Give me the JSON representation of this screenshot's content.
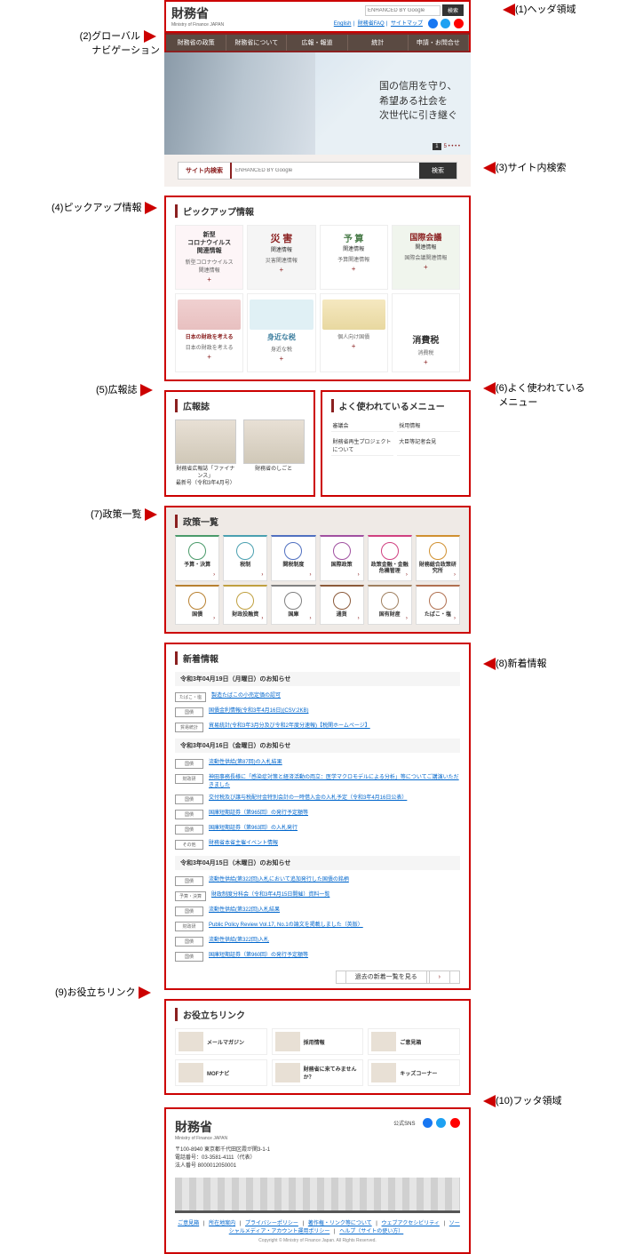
{
  "callouts": {
    "c1": "(1)ヘッダ領域",
    "c2a": "(2)グローバル",
    "c2b": "ナビゲーション",
    "c3": "(3)サイト内検索",
    "c4": "(4)ピックアップ情報",
    "c5": "(5)広報誌",
    "c6a": "(6)よく使われている",
    "c6b": "メニュー",
    "c7": "(7)政策一覧",
    "c8": "(8)新着情報",
    "c9": "(9)お役立ちリンク",
    "c10": "(10)フッタ領域"
  },
  "header": {
    "logo": "財務省",
    "logo_sub": "Ministry of Finance JAPAN",
    "search_placeholder": "ENHANCED BY Google",
    "search_btn": "検索",
    "links": {
      "en": "English",
      "faq": "財務省FAQ",
      "sitemap": "サイトマップ"
    }
  },
  "gnav": [
    "財務省の政策",
    "財務省について",
    "広報・報道",
    "統計",
    "申請・お問合せ"
  ],
  "hero": {
    "line1": "国の信用を守り、",
    "line2": "希望ある社会を",
    "line3": "次世代に引き継ぐ",
    "page": "1 / 5"
  },
  "search": {
    "label": "サイト内検索",
    "placeholder": "ENHANCED BY Google",
    "btn": "検索"
  },
  "pickup": {
    "title": "ピックアップ情報",
    "row1": [
      {
        "title": "新型\nコロナウイルス\n関連情報",
        "sub": "新型コロナウイルス\n関連情報"
      },
      {
        "title": "災 害",
        "sub2": "関連情報",
        "sub": "災害関連情報"
      },
      {
        "title": "予 算",
        "sub2": "関連情報",
        "sub": "予算関連情報"
      },
      {
        "title": "国際会議",
        "sub2": "関連情報",
        "sub": "国際会議関連情報"
      }
    ],
    "row2": [
      {
        "sub": "日本の財政を考える"
      },
      {
        "sub": "身近な税"
      },
      {
        "sub": "個人向け国債"
      },
      {
        "sub": "消費税"
      }
    ],
    "row2_titles": {
      "zaisei": "日本の財政を考える",
      "zei": "身近な税",
      "kokusai": "個人向け国債",
      "shohi": "消費税"
    }
  },
  "koho": {
    "title": "広報誌",
    "items": [
      {
        "cap": "財務省広報誌「ファイナンス」\n最新号（令和3年4月号）"
      },
      {
        "cap": "財務省のしごと"
      }
    ]
  },
  "freq": {
    "title": "よく使われているメニュー",
    "items": [
      "審議会",
      "採用情報",
      "財務省再生プロジェクトについて",
      "大臣等記者会見"
    ]
  },
  "policy": {
    "title": "政策一覧",
    "row1": [
      {
        "lbl": "予算・決算",
        "c": "#4a9a6a"
      },
      {
        "lbl": "税制",
        "c": "#4aa0b0"
      },
      {
        "lbl": "関税制度",
        "c": "#5070c0"
      },
      {
        "lbl": "国際政策",
        "c": "#a050a0"
      },
      {
        "lbl": "政策金融・金融危機管理",
        "c": "#d04080"
      },
      {
        "lbl": "財務総合政策研究所",
        "c": "#d09030"
      }
    ],
    "row2": [
      {
        "lbl": "国債",
        "c": "#b88030"
      },
      {
        "lbl": "財政投融資",
        "c": "#c0a040"
      },
      {
        "lbl": "国庫",
        "c": "#808080"
      },
      {
        "lbl": "通貨",
        "c": "#8b5a3a"
      },
      {
        "lbl": "国有財産",
        "c": "#a08060"
      },
      {
        "lbl": "たばこ・塩",
        "c": "#b07050"
      }
    ]
  },
  "news": {
    "title": "新着情報",
    "groups": [
      {
        "date": "令和3年04月19日（月曜日）のお知らせ",
        "items": [
          {
            "tag": "たばこ・塩",
            "link": "製造たばこの小売定価の認可"
          },
          {
            "tag": "国債",
            "link": "国債金利情報(令和3年4月16日)(CSV:2KB)"
          },
          {
            "tag": "貿易統計",
            "link": "貿易統計(令和3年3月分及び令和2年度分速報)【税関ホームページ】"
          }
        ]
      },
      {
        "date": "令和3年04月16日（金曜日）のお知らせ",
        "items": [
          {
            "tag": "国債",
            "link": "流動性供給(第87回)の入札結果"
          },
          {
            "tag": "財政研",
            "link": "神田事務長様に「感染症対策と経済活動の両立：医学マクロモデルによる分析」等についてご講演いただきました"
          },
          {
            "tag": "国債",
            "link": "交付税及び譲与税配付金特別会計の一時借入金の入札予定（令和3年4月16日公表）"
          },
          {
            "tag": "国債",
            "link": "国庫短期証券（第965回）の発行予定額等"
          },
          {
            "tag": "国債",
            "link": "国庫短期証券（第963回）の入札発行"
          },
          {
            "tag": "その他",
            "link": "財務省本省主催イベント情報"
          }
        ]
      },
      {
        "date": "令和3年04月15日（木曜日）のお知らせ",
        "items": [
          {
            "tag": "国債",
            "link": "流動性供給(第322回)入札において追加発行した国債の銘柄"
          },
          {
            "tag": "予算・決算",
            "link": "財政制度分科会（令和3年4月15日開催）資料一覧"
          },
          {
            "tag": "国債",
            "link": "流動性供給(第322回)入札結果"
          },
          {
            "tag": "財政研",
            "link": "Public Policy Review Vol.17, No.1の論文を掲載しました（英版）"
          },
          {
            "tag": "国債",
            "link": "流動性供給(第322回)入札"
          },
          {
            "tag": "国債",
            "link": "国庫短期証券（第960回）の発行予定額等"
          }
        ]
      }
    ],
    "more": "過去の新着一覧を見る"
  },
  "useful": {
    "title": "お役立ちリンク",
    "items": [
      "メールマガジン",
      "採用情報",
      "ご意見箱",
      "MOFナビ",
      "財務省に来てみませんか？",
      "キッズコーナー"
    ]
  },
  "footer": {
    "logo": "財務省",
    "logo_sub": "Ministry of Finance JAPAN",
    "sns_label": "公式SNS",
    "addr": "〒100-8940 東京都千代田区霞が関3-1-1\n電話番号：03-3581-4111（代表）\n法人番号 8000012050001",
    "links": [
      "ご意見箱",
      "所在地案内",
      "プライバシーポリシー",
      "著作権・リンク等について",
      "ウェブアクセシビリティ",
      "ソーシャルメディア・アカウント運用ポリシー",
      "ヘルプ（サイトの使い方）"
    ],
    "copy": "Copyright © Ministry of Finance Japan. All Rights Reserved."
  }
}
